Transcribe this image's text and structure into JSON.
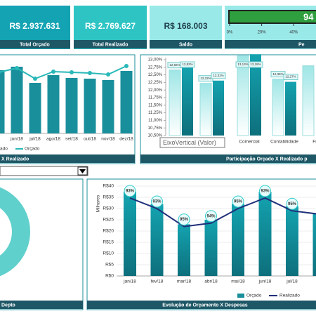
{
  "kpis": [
    {
      "value": "R$ 2.937.631",
      "label": "Total Orçado"
    },
    {
      "value": "R$ 2.769.627",
      "label": "Total Realizado"
    },
    {
      "value": "R$ 168.003",
      "label": "Saldo"
    }
  ],
  "tooltip": "EixoVertical (Valor)",
  "donut_footer": "Depto",
  "chart_data": [
    {
      "type": "progress",
      "value": 94,
      "value_label": "94",
      "title": "Pe",
      "xlim": [
        0,
        100
      ],
      "xticks": [
        {
          "value": 0,
          "label": "0%"
        },
        {
          "value": 20,
          "label": "20%"
        },
        {
          "value": 40,
          "label": "40%"
        }
      ],
      "color": "#2e9e3e"
    },
    {
      "type": "bar_line",
      "title": "X Realizado",
      "categories": [
        null,
        "jun/18",
        "jul/18",
        "ago/18",
        "set/18",
        "out/18",
        "nov/18",
        "dez/18"
      ],
      "ylim": [
        0,
        100
      ],
      "series": [
        {
          "name": "ado",
          "color": "#1a8f9c",
          "values": [
            90,
            95,
            72,
            83,
            79,
            78,
            76,
            89
          ]
        },
        {
          "name": "Orçado",
          "color": "#2ab8b8",
          "values": [
            87,
            93,
            78,
            88,
            87,
            86,
            84,
            96
          ]
        }
      ]
    },
    {
      "type": "grouped_bar",
      "title": "Participação Orçado X Realizado p",
      "categories": [
        null,
        null,
        "Comercial",
        "Contabilidade",
        "Fi"
      ],
      "ylim": [
        10.5,
        13.15
      ],
      "yticks": [
        {
          "value": 13,
          "label": "13,00%"
        },
        {
          "value": 12.75,
          "label": "12,75%"
        },
        {
          "value": 12.5,
          "label": "12,50%"
        },
        {
          "value": 12.25,
          "label": "12,25%"
        },
        {
          "value": 12,
          "label": "12,00%"
        },
        {
          "value": 11.75,
          "label": "11,75%"
        },
        {
          "value": 11.5,
          "label": "11,50%"
        },
        {
          "value": 11.25,
          "label": "11,25%"
        },
        {
          "value": 11,
          "label": "11,00%"
        },
        {
          "value": 10.75,
          "label": "10,75%"
        },
        {
          "value": 10.5,
          "label": "10,50%"
        }
      ],
      "series": [
        {
          "color": "#bfeeee",
          "values": [
            12.66,
            12.22,
            13.13,
            12.36,
            12.8
          ],
          "value_labels": [
            "12,66%",
            "12,22%",
            "13,13%",
            "12,36%",
            null
          ]
        },
        {
          "color": "#1a8f9c",
          "values": [
            12.82,
            12.31,
            13.18,
            12.27,
            null
          ],
          "value_labels": [
            "12,82%",
            "12,31%",
            "13,18%",
            "12,27%",
            null
          ]
        }
      ]
    },
    {
      "type": "bar_line",
      "title": "Evolução de Orçamento X Despesas",
      "y_label": "Milhares",
      "categories": [
        "jan/18",
        "fev/18",
        "mar/18",
        "abr/18",
        "mai/18",
        "jun/18",
        "jul/18",
        null
      ],
      "ylim": [
        0,
        40
      ],
      "yticks": [
        {
          "value": 40,
          "label": "R$40"
        },
        {
          "value": 35,
          "label": "R$35"
        },
        {
          "value": 30,
          "label": "R$30"
        },
        {
          "value": 25,
          "label": "R$25"
        },
        {
          "value": 20,
          "label": "R$20"
        },
        {
          "value": 15,
          "label": "R$15"
        },
        {
          "value": 10,
          "label": "R$10"
        },
        {
          "value": 5,
          "label": "R$5"
        },
        {
          "value": 0,
          "label": "R$0"
        }
      ],
      "series": [
        {
          "name": "Orçado",
          "color": "#1a8f9c",
          "values": [
            37.5,
            32,
            23,
            25,
            32,
            37.5,
            31,
            28
          ]
        },
        {
          "name": "Realizado",
          "color": "#1f2f7a",
          "values": [
            34.7,
            30,
            22,
            23.5,
            30,
            34.7,
            29,
            27.5
          ]
        }
      ],
      "point_labels": [
        "93%",
        "93%",
        "95%",
        "94%",
        "95%",
        "93%",
        "95%",
        null
      ]
    }
  ]
}
